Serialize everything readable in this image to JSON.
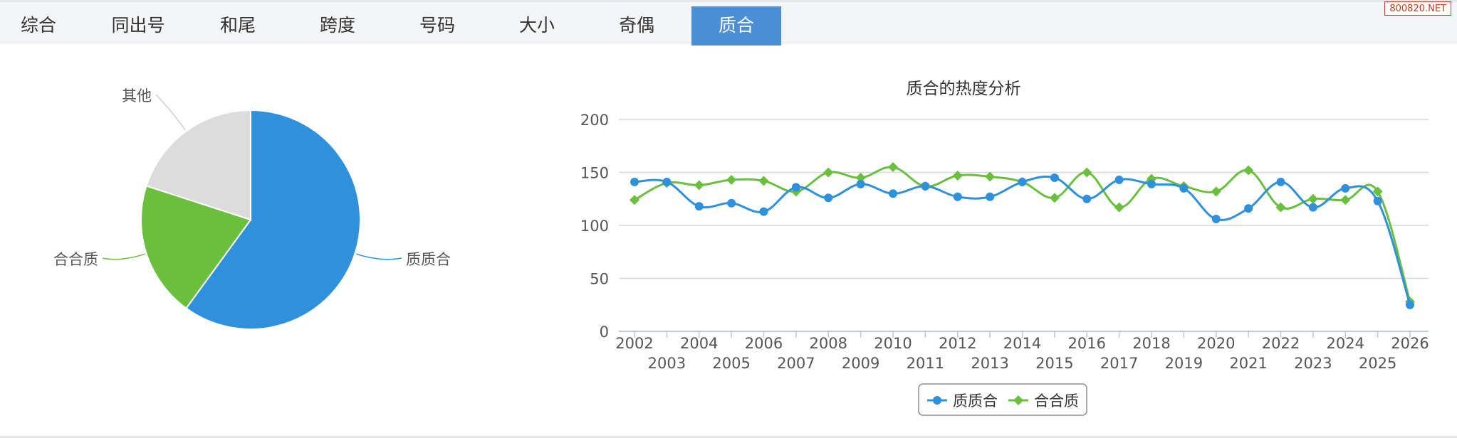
{
  "tabs": [
    {
      "label": "综合",
      "active": false
    },
    {
      "label": "同出号",
      "active": false
    },
    {
      "label": "和尾",
      "active": false
    },
    {
      "label": "跨度",
      "active": false
    },
    {
      "label": "号码",
      "active": false
    },
    {
      "label": "大小",
      "active": false
    },
    {
      "label": "奇偶",
      "active": false
    },
    {
      "label": "质合",
      "active": true
    }
  ],
  "watermark": "800820.NET",
  "colors": {
    "blue": "#2f90db",
    "green": "#6abf3d",
    "gray": "#dcdcdc",
    "active_tab": "#4a8fd6"
  },
  "chart_data": [
    {
      "type": "pie",
      "slices": [
        {
          "label": "质质合",
          "value": 60,
          "color": "#2f90db"
        },
        {
          "label": "合合质",
          "value": 20,
          "color": "#6abf3d"
        },
        {
          "label": "其他",
          "value": 20,
          "color": "#dcdcdc"
        }
      ]
    },
    {
      "type": "line",
      "title": "质合的热度分析",
      "x": [
        "2002",
        "2003",
        "2004",
        "2005",
        "2006",
        "2007",
        "2008",
        "2009",
        "2010",
        "2011",
        "2012",
        "2013",
        "2014",
        "2015",
        "2016",
        "2017",
        "2018",
        "2019",
        "2020",
        "2021",
        "2022",
        "2023",
        "2024",
        "2025",
        "2026"
      ],
      "ylim": [
        0,
        200
      ],
      "yticks": [
        0,
        50,
        100,
        150,
        200
      ],
      "grid": true,
      "legend": "bottom-center",
      "series": [
        {
          "name": "质质合",
          "marker": "circle",
          "color": "#2f90db",
          "values": [
            141,
            141,
            118,
            121,
            113,
            136,
            126,
            139,
            130,
            137,
            127,
            127,
            141,
            145,
            125,
            143,
            139,
            135,
            106,
            116,
            141,
            117,
            135,
            123,
            25
          ]
        },
        {
          "name": "合合质",
          "marker": "diamond",
          "color": "#6abf3d",
          "values": [
            124,
            140,
            138,
            143,
            142,
            132,
            150,
            145,
            155,
            137,
            147,
            146,
            141,
            126,
            150,
            117,
            144,
            137,
            132,
            152,
            117,
            125,
            124,
            132,
            28
          ]
        }
      ]
    }
  ]
}
